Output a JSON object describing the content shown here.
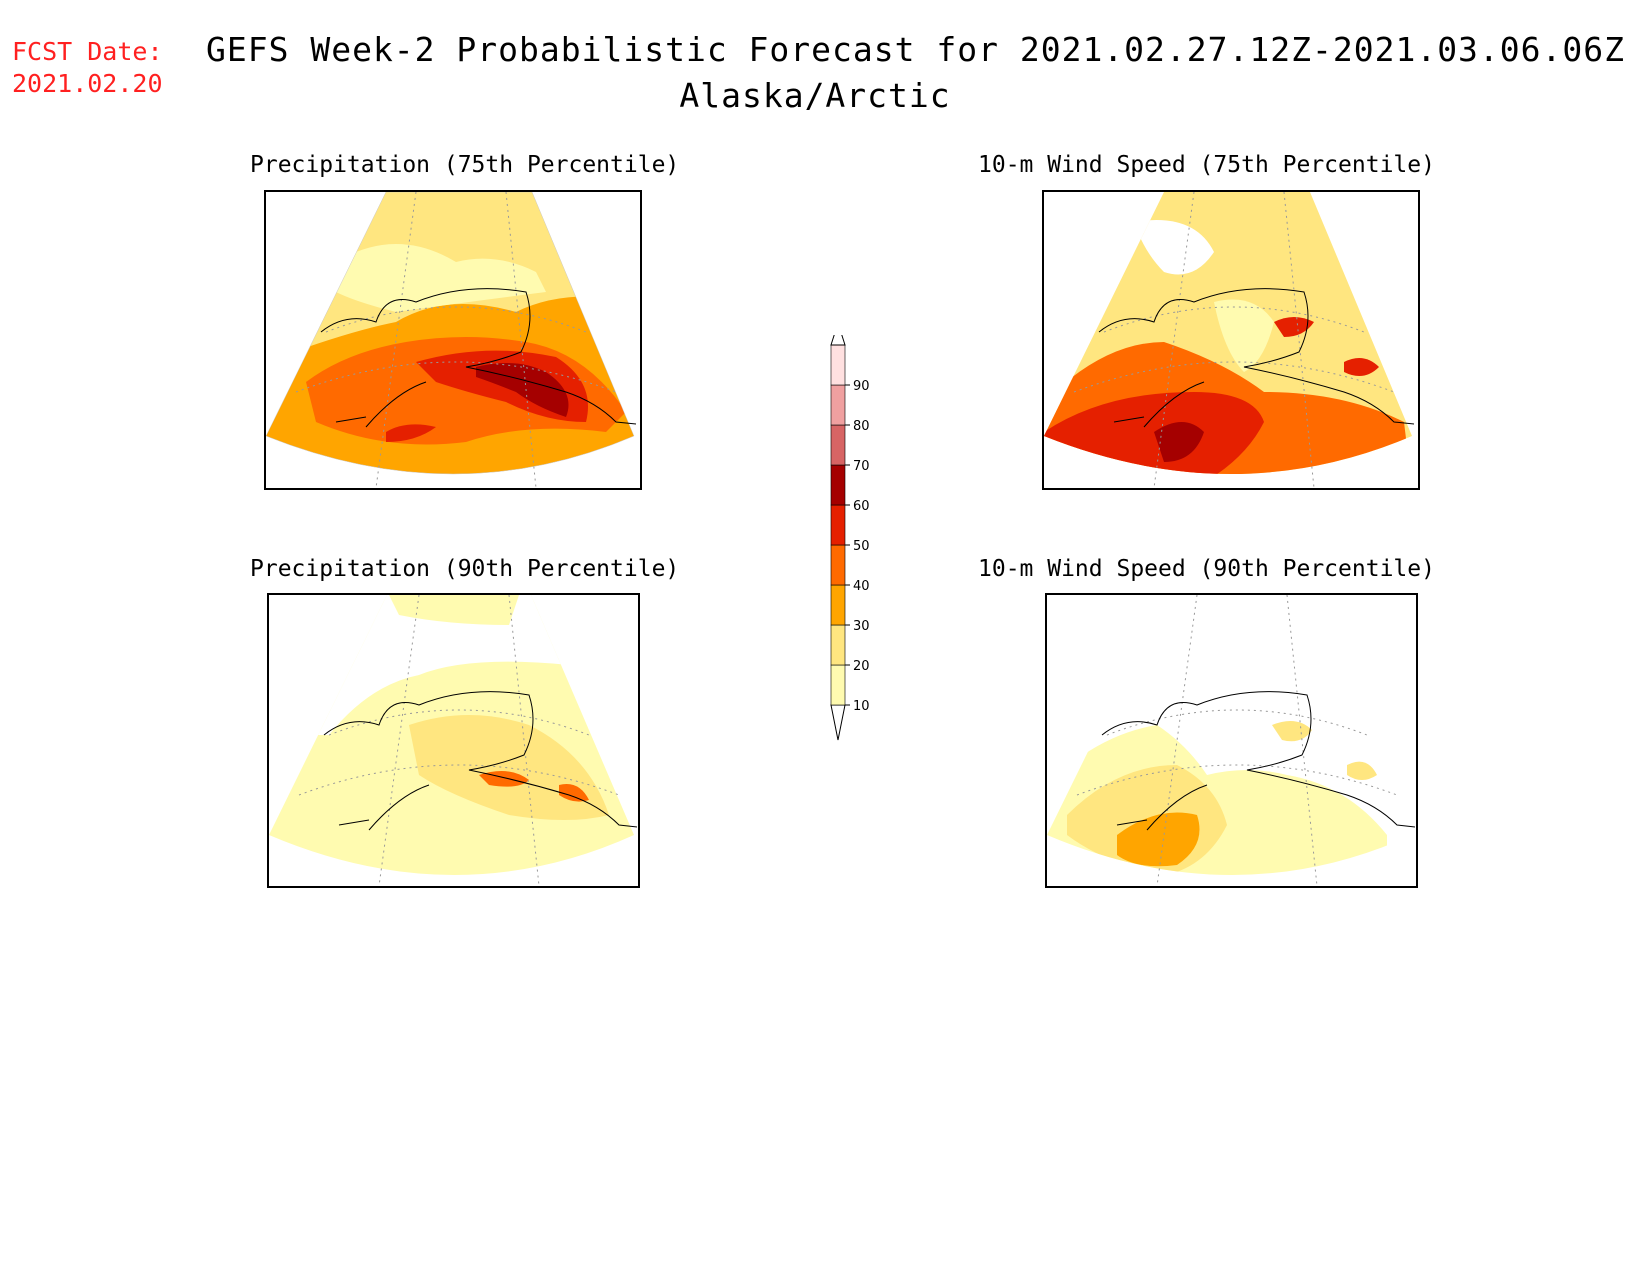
{
  "header": {
    "fcst_label": "FCST Date:",
    "fcst_date": "2021.02.20",
    "title": "GEFS Week-2 Probabilistic Forecast for 2021.02.27.12Z-2021.03.06.06Z",
    "region": "Alaska/Arctic"
  },
  "panels": [
    {
      "title": "Precipitation (75th Percentile)"
    },
    {
      "title": "10-m Wind Speed (75th Percentile)"
    },
    {
      "title": "Precipitation (90th Percentile)"
    },
    {
      "title": "10-m Wind Speed (90th Percentile)"
    }
  ],
  "colorbar": {
    "levels": [
      10,
      20,
      30,
      40,
      50,
      60,
      70,
      80,
      90
    ],
    "colors": [
      "#fffbb0",
      "#ffe680",
      "#ffa500",
      "#ff6a00",
      "#e52000",
      "#a50000",
      "#d76464",
      "#f0a0a0",
      "#ffe0e0"
    ]
  }
}
